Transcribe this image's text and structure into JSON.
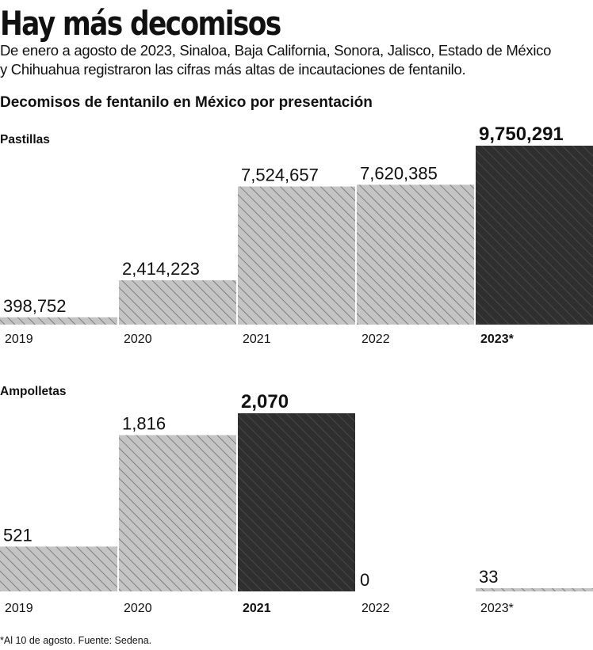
{
  "header": {
    "title": "Hay más decomisos",
    "subtitle_line1": "De enero a agosto de 2023, Sinaloa, Baja California, Sonora, Jalisco, Estado de México",
    "subtitle_line2": "y Chihuahua registraron las cifras más altas de incautaciones de fentanilo."
  },
  "footnote": "*Al 10 de agosto. Fuente: Sedena.",
  "colors": {
    "bar_light": "#c4c4c4",
    "bar_dark": "#2f2f2f",
    "hatch": "#6e6e6e",
    "baseline": "#111111"
  },
  "chart_data": {
    "title": "Decomisos de fentanilo en México por presentación",
    "panels": [
      {
        "id": "pastillas",
        "label": "Pastillas",
        "type": "bar",
        "categories": [
          "2019",
          "2020",
          "2021",
          "2022",
          "2023*"
        ],
        "values": [
          398752,
          2414223,
          7524657,
          7620385,
          9750291
        ],
        "value_labels": [
          "398,752",
          "2,414,223",
          "7,524,657",
          "7,620,385",
          "9,750,291"
        ],
        "highlight_index": 4,
        "ylim": [
          0,
          9750291
        ]
      },
      {
        "id": "ampolletas",
        "label": "Ampolletas",
        "type": "bar",
        "categories": [
          "2019",
          "2020",
          "2021",
          "2022",
          "2023*"
        ],
        "values": [
          521,
          1816,
          2070,
          0,
          33
        ],
        "value_labels": [
          "521",
          "1,816",
          "2,070",
          "0",
          "33"
        ],
        "highlight_index": 2,
        "ylim": [
          0,
          2070
        ]
      }
    ]
  }
}
